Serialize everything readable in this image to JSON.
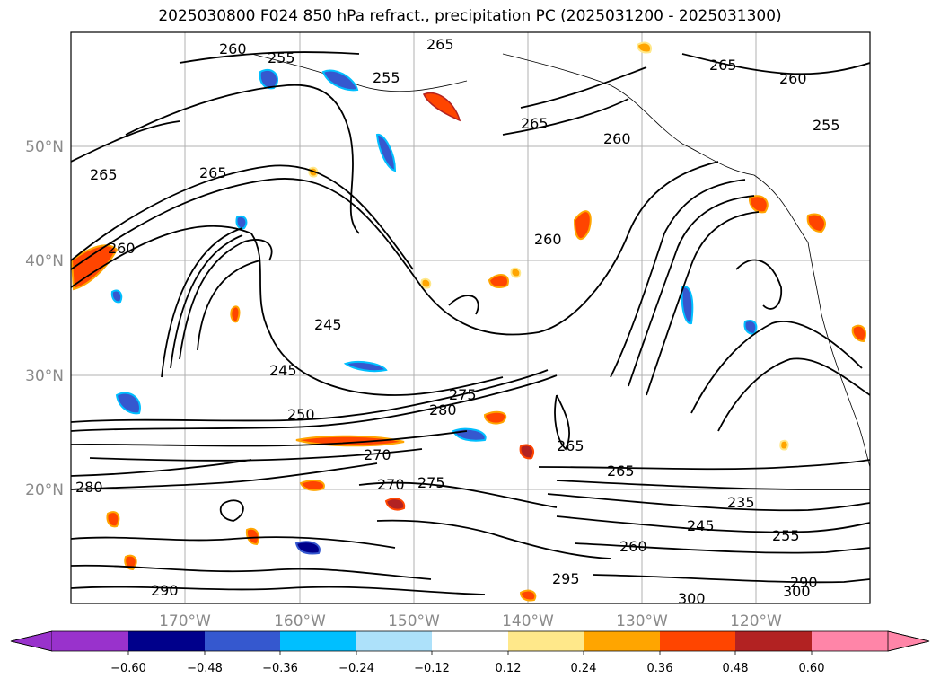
{
  "title": "2025030800 F024 850 hPa refract., precipitation PC (2025031200 - 2025031300)",
  "lat_labels": [
    "50°N",
    "40°N",
    "30°N",
    "20°N"
  ],
  "lon_labels": [
    "170°W",
    "160°W",
    "150°W",
    "140°W",
    "130°W",
    "120°W"
  ],
  "colorbar": {
    "ticks": [
      "−0.60",
      "−0.48",
      "−0.36",
      "−0.24",
      "−0.12",
      "0.12",
      "0.24",
      "0.36",
      "0.48",
      "0.60"
    ],
    "colors": [
      "#9932CC",
      "#00008B",
      "#3558CF",
      "#00BFFF",
      "#ADE1FA",
      "#FFFFFF",
      "#FFE88A",
      "#FFA500",
      "#FF4500",
      "#B22222",
      "#FF85A8"
    ]
  },
  "contour_labels": [
    "260",
    "255",
    "265",
    "255",
    "265",
    "260",
    "265",
    "260",
    "255",
    "265",
    "265",
    "260",
    "260",
    "245",
    "245",
    "250",
    "280",
    "275",
    "270",
    "265",
    "265",
    "235",
    "245",
    "255",
    "260",
    "270",
    "275",
    "290",
    "280",
    "300",
    "295",
    "290",
    "300"
  ]
}
